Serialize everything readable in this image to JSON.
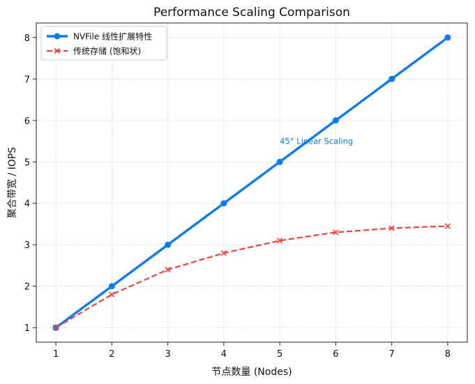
{
  "chart_data": {
    "type": "line",
    "title": "Performance Scaling Comparison",
    "xlabel": "节点数量 (Nodes)",
    "ylabel": "聚合带宽 / IOPS",
    "x": [
      1,
      2,
      3,
      4,
      5,
      6,
      7,
      8
    ],
    "xlim": [
      0.65,
      8.35
    ],
    "ylim": [
      0.65,
      8.35
    ],
    "xticks": [
      1,
      2,
      3,
      4,
      5,
      6,
      7,
      8
    ],
    "yticks": [
      1,
      2,
      3,
      4,
      5,
      6,
      7,
      8
    ],
    "grid": true,
    "legend_position": "top-left",
    "series": [
      {
        "name": "NVFile 线性扩展特性",
        "values": [
          1,
          2,
          3,
          4,
          5,
          6,
          7,
          8
        ],
        "color": "#0a7bf0",
        "marker": "circle",
        "line_style": "solid"
      },
      {
        "name": "传统存储 (饱和状)",
        "values": [
          1,
          1.8,
          2.4,
          2.8,
          3.1,
          3.3,
          3.4,
          3.45
        ],
        "color": "#f0413a",
        "marker": "x",
        "line_style": "dashed"
      }
    ],
    "annotations": [
      {
        "text": "45° Linear Scaling",
        "x": 5,
        "y": 5.5,
        "color": "#0a7bf0"
      }
    ]
  }
}
